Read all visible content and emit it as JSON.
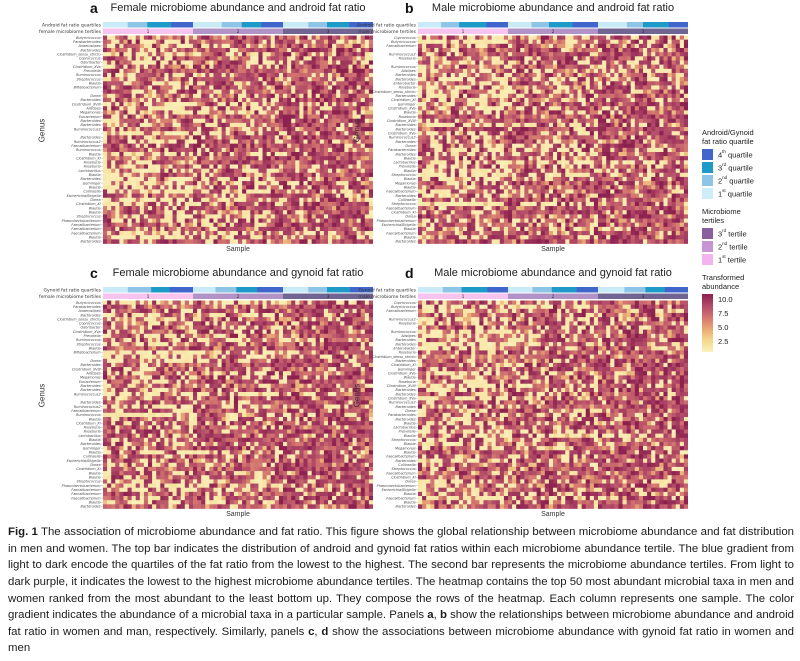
{
  "figure": {
    "panels": [
      {
        "letter": "a",
        "title": "Female microbiome abundance and android fat ratio",
        "bar1_label": "Android fat ratio quartiles",
        "bar2_label": "female microbiome tertiles",
        "xlabel": "Sample",
        "ylabel": "Genus",
        "genus_key": "female",
        "seed": 11
      },
      {
        "letter": "b",
        "title": "Male microbiome abundance and android fat ratio",
        "bar1_label": "Android fat ratio quartiles",
        "bar2_label": "male microbiome tertiles",
        "xlabel": "Sample",
        "ylabel": "Genus",
        "genus_key": "male",
        "seed": 23
      },
      {
        "letter": "c",
        "title": "Female microbiome abundance and gynoid fat ratio",
        "bar1_label": "Gynoid fat ratio quartiles",
        "bar2_label": "female microbiome tertiles",
        "xlabel": "Sample",
        "ylabel": "Genus",
        "genus_key": "female",
        "seed": 37
      },
      {
        "letter": "d",
        "title": "Male microbiome abundance and gynoid fat ratio",
        "bar1_label": "Gynoid fat ratio quartiles",
        "bar2_label": "male microbiome tertiles",
        "xlabel": "Sample",
        "ylabel": "Genus",
        "genus_key": "male",
        "seed": 51
      }
    ],
    "quartile_bar_colors": [
      "#c9ebf8",
      "#8ec5e6",
      "#1d9ac7",
      "#4166cb"
    ],
    "tertile_bar_colors": [
      "#f7c3ef",
      "#b293c8",
      "#6f6492"
    ],
    "tertile_bar_numbers": [
      "1",
      "2",
      "3"
    ],
    "heat_colormap": [
      "#fbf2bd",
      "#f4d88f",
      "#e8a873",
      "#d3746f",
      "#b14a68",
      "#8c2150"
    ],
    "n_rows": 50,
    "n_cols": 66
  },
  "legend": {
    "quartiles": {
      "title": [
        "Android/Gynoid",
        "fat ratio quartile"
      ],
      "items": [
        {
          "ordinal": "4",
          "suffix": "th",
          "label": " quartile",
          "color": "#4166cb"
        },
        {
          "ordinal": "3",
          "suffix": "rd",
          "label": " quartile",
          "color": "#1d9ac7"
        },
        {
          "ordinal": "2",
          "suffix": "nd",
          "label": " quartile",
          "color": "#8ec5e6"
        },
        {
          "ordinal": "1",
          "suffix": "st",
          "label": " quartile",
          "color": "#cdedf8"
        }
      ]
    },
    "tertiles": {
      "title": [
        "Microbiome",
        "tertiles"
      ],
      "items": [
        {
          "ordinal": "3",
          "suffix": "rd",
          "label": " tertile",
          "color": "#8a5f9e"
        },
        {
          "ordinal": "2",
          "suffix": "nd",
          "label": " tertile",
          "color": "#c796d2"
        },
        {
          "ordinal": "1",
          "suffix": "st",
          "label": " tertile",
          "color": "#f3b3ee"
        }
      ]
    },
    "abundance": {
      "title": [
        "Transformed",
        "abundance"
      ],
      "gradient": [
        "#8c2150",
        "#b14a68",
        "#d3746f",
        "#e8a873",
        "#f4d88f",
        "#fbf2bd"
      ],
      "ticks": [
        "10.0",
        "7.5",
        "5.0",
        "2.5"
      ]
    }
  },
  "caption": {
    "segments": [
      {
        "text": "Fig. 1",
        "bold": true
      },
      {
        "text": " The association of microbiome abundance and fat ratio. This figure shows the global relationship between microbiome abundance and fat distribution in men and women. The top bar indicates the distribution of android and gynoid fat ratios within each microbiome abundance tertile. The blue gradient from light to dark encode the quartiles of the fat ratio from the lowest to the highest. The second bar represents the microbiome abundance tertiles. From light to dark purple, it indicates the lowest to the highest microbiome abundance tertiles. The heatmap contains the top 50 most abundant microbial taxa in men and women ranked from the most abundant to the least bottom up. They compose the rows of the heatmap. Each column represents one sample. The color gradient indicates the abundance of a microbial taxa in a particular sample. Panels ",
        "bold": false
      },
      {
        "text": "a",
        "bold": true
      },
      {
        "text": ", ",
        "bold": false
      },
      {
        "text": "b",
        "bold": true
      },
      {
        "text": " show the relationships between microbiome abundance and android fat ratio in women and man, respectively. Similarly, panels ",
        "bold": false
      },
      {
        "text": "c",
        "bold": true
      },
      {
        "text": ", ",
        "bold": false
      },
      {
        "text": "d",
        "bold": true
      },
      {
        "text": " show the associations between microbiome abundance with gynoid fat ratio in women and men",
        "bold": false
      }
    ]
  },
  "chart_data": {
    "type": "heatmap",
    "xlabel": "Sample",
    "ylabel": "Genus",
    "n_taxa_rows": 50,
    "n_sample_columns_approx": 66,
    "panels": [
      {
        "id": "a",
        "title": "Female microbiome abundance and android fat ratio",
        "sex": "female",
        "fat_ratio": "android"
      },
      {
        "id": "b",
        "title": "Male microbiome abundance and android fat ratio",
        "sex": "male",
        "fat_ratio": "android"
      },
      {
        "id": "c",
        "title": "Female microbiome abundance and gynoid fat ratio",
        "sex": "female",
        "fat_ratio": "gynoid"
      },
      {
        "id": "d",
        "title": "Male microbiome abundance and gynoid fat ratio",
        "sex": "male",
        "fat_ratio": "gynoid"
      }
    ],
    "rows": {
      "female": [
        "Butyricicoccus",
        "Parabacteroides",
        "Anaerostipes",
        "Bacteroides",
        "Clostridium_sensu_stricto",
        "Coprococcus",
        "Odoribacter",
        "Clostridium_XVa",
        "Prevotella",
        "Ruminococcus",
        "Streptococcus",
        "Blautia",
        "Bifidobacterium",
        "",
        "Dorea",
        "Bacteroides",
        "Clostridium_XVIII",
        "Alistipes",
        "Megamonas",
        "Eubacterium",
        "Bacteroides",
        "Bacteroides",
        "Ruminococcus2",
        "",
        "Bacteroides",
        "Ruminococcus2",
        "Faecalibacterium",
        "Ruminococcus",
        "Blautia",
        "Clostridium_XI",
        "Roseburia",
        "Roseburia",
        "Lactobacillus",
        "Blautia",
        "Bacteroides",
        "Gemmiger",
        "Blautia",
        "Collinsella",
        "Escherichia/Shigella",
        "Dorea",
        "Clostridium_XI",
        "Blautia",
        "Blautia",
        "Streptococcus",
        "Phascolarctobacterium",
        "Faecalibacterium",
        "Faecalibacterium",
        "Faecalibacterium",
        "Blautia",
        "Bacteroides"
      ],
      "male": [
        "Coprococcus",
        "Butyricicoccus",
        "Faecalibacterium",
        "",
        "Ruminococcus2",
        "Roseburia",
        "",
        "Ruminococcus",
        "Alistipes",
        "Bacteroides",
        "Bacteroides",
        "Enterobacter",
        "Roseburia",
        "Clostridium_sensu_stricto",
        "Bacteroides",
        "Clostridium_XI",
        "Gemmiger",
        "Clostridium_XVa",
        "Blautia",
        "Roseburia",
        "Clostridium_XVIII",
        "Bacteroides",
        "Bacteroides",
        "Clostridium_XVa",
        "Ruminococcus2",
        "Bacteroides",
        "Dorea",
        "Parabacteroides",
        "Bacteroides",
        "Blautia",
        "Lactobacillus",
        "Prevotella",
        "Blautia",
        "Streptococcus",
        "Blautia",
        "Megamonas",
        "Blautia",
        "Faecalibacterium",
        "Bacteroides",
        "Collinsella",
        "Streptococcus",
        "Faecalibacterium",
        "Clostridium_XI",
        "Dorea",
        "Phascolarctobacterium",
        "Escherichia/Shigella",
        "Blautia",
        "Faecalibacterium",
        "Blautia",
        "Bacteroides"
      ]
    },
    "annotation_bars": [
      {
        "name": "fat ratio quartiles",
        "levels": [
          "1st quartile",
          "2nd quartile",
          "3rd quartile",
          "4th quartile"
        ],
        "encoding": "light blue (lowest) to dark blue (highest), sorted within each tertile block"
      },
      {
        "name": "microbiome tertiles",
        "levels": [
          "1",
          "2",
          "3"
        ],
        "encoding": "light pink (1st tertile) to dark purple (3rd tertile)"
      }
    ],
    "colorbar": {
      "label": "Transformed abundance",
      "ticks": [
        10.0,
        7.5,
        5.0,
        2.5
      ],
      "low_color": "#fbf2bd",
      "high_color": "#8c2150"
    },
    "cell_values": "individual cell values not legible at source resolution; cells range from pale yellow (low transformed abundance ~2.5) to dark maroon (~10.0), with low-abundance (pale) cells denser in lower microbiome tertiles (left side of each panel)"
  }
}
